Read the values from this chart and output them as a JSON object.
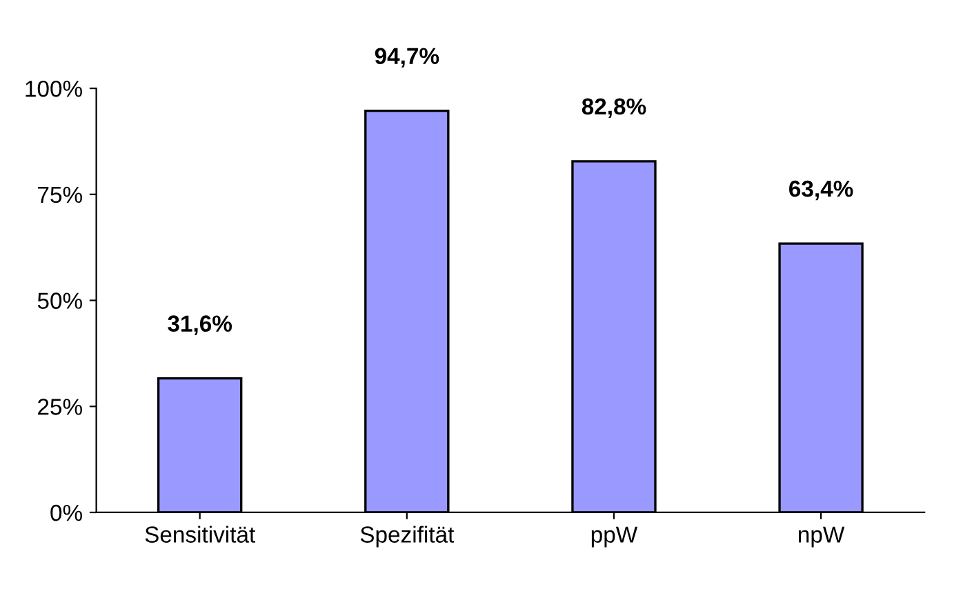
{
  "chart_data": {
    "type": "bar",
    "categories": [
      "Sensitivität",
      "Spezifität",
      "ppW",
      "npW"
    ],
    "values": [
      31.6,
      94.7,
      82.8,
      63.4
    ],
    "value_labels": [
      "31,6%",
      "94,7%",
      "82,8%",
      "63,4%"
    ],
    "color": "#9999ff",
    "ylim": [
      0,
      100
    ],
    "yticks": [
      {
        "value": 0,
        "label": "0%"
      },
      {
        "value": 25,
        "label": "25%"
      },
      {
        "value": 50,
        "label": "50%"
      },
      {
        "value": 75,
        "label": "75%"
      },
      {
        "value": 100,
        "label": "100%"
      }
    ],
    "grid": false
  }
}
